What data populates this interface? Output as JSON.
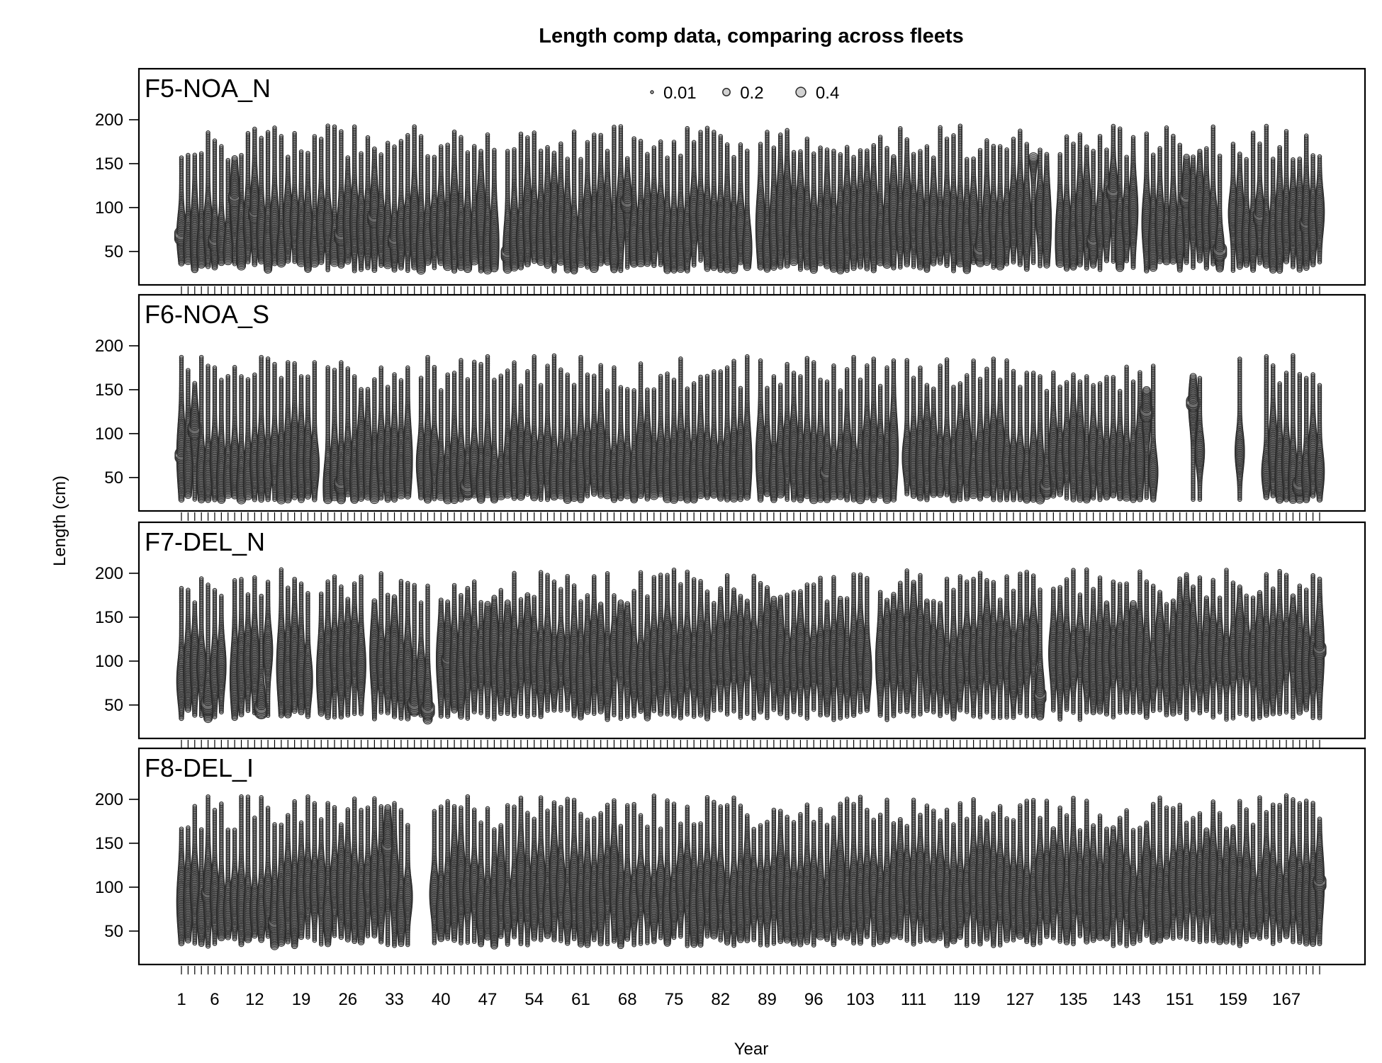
{
  "chart_data": {
    "type": "scatter",
    "subtype": "bubble",
    "title": "Length comp data,  comparing across fleets",
    "xlabel": "Year",
    "ylabel": "Length (cm)",
    "ylim": [
      20,
      250
    ],
    "xlim": [
      1,
      172
    ],
    "yticks": [
      50,
      100,
      150,
      200
    ],
    "xtick_labels": [
      "1",
      "6",
      "12",
      "19",
      "26",
      "33",
      "40",
      "47",
      "54",
      "61",
      "68",
      "75",
      "82",
      "89",
      "96",
      "103",
      "111",
      "119",
      "127",
      "135",
      "143",
      "151",
      "159",
      "167"
    ],
    "legend": {
      "placement": "top-center",
      "entries": [
        {
          "label": "0.01",
          "value": 0.01
        },
        {
          "label": "0.2",
          "value": 0.2
        },
        {
          "label": "0.4",
          "value": 0.4
        }
      ]
    },
    "grid": false,
    "color": "#333333",
    "panels": [
      {
        "label": "F5-NOA_N",
        "missing_ranges": [
          [
            49,
            49
          ],
          [
            87,
            87
          ],
          [
            132,
            132
          ],
          [
            145,
            145
          ],
          [
            158,
            158
          ]
        ],
        "mode_start": 65,
        "mode_end": 80,
        "len_min": 40,
        "len_max": 155,
        "peaks": [
          {
            "x": 1,
            "y": 68,
            "size": 0.4
          },
          {
            "x": 6,
            "y": 62,
            "size": 0.35
          },
          {
            "x": 9,
            "y": 110,
            "size": 0.3
          },
          {
            "x": 12,
            "y": 92,
            "size": 0.3
          },
          {
            "x": 25,
            "y": 68,
            "size": 0.4
          },
          {
            "x": 30,
            "y": 88,
            "size": 0.4
          },
          {
            "x": 33,
            "y": 62,
            "size": 0.35
          },
          {
            "x": 50,
            "y": 48,
            "size": 0.35
          },
          {
            "x": 68,
            "y": 105,
            "size": 0.4
          },
          {
            "x": 121,
            "y": 50,
            "size": 0.4
          },
          {
            "x": 129,
            "y": 165,
            "size": 0.3
          },
          {
            "x": 138,
            "y": 62,
            "size": 0.35
          },
          {
            "x": 141,
            "y": 118,
            "size": 0.4
          },
          {
            "x": 152,
            "y": 110,
            "size": 0.4
          },
          {
            "x": 157,
            "y": 50,
            "size": 0.4
          },
          {
            "x": 163,
            "y": 90,
            "size": 0.35
          },
          {
            "x": 170,
            "y": 80,
            "size": 0.35
          }
        ]
      },
      {
        "label": "F6-NOA_S",
        "missing_ranges": [
          [
            22,
            22
          ],
          [
            36,
            36
          ],
          [
            87,
            87
          ],
          [
            109,
            109
          ],
          [
            148,
            152
          ],
          [
            155,
            159
          ],
          [
            161,
            163
          ]
        ],
        "mode_start": 55,
        "mode_end": 65,
        "len_min": 32,
        "len_max": 150,
        "peaks": [
          {
            "x": 1,
            "y": 75,
            "size": 0.35
          },
          {
            "x": 3,
            "y": 105,
            "size": 0.4
          },
          {
            "x": 25,
            "y": 42,
            "size": 0.4
          },
          {
            "x": 44,
            "y": 38,
            "size": 0.45
          },
          {
            "x": 98,
            "y": 55,
            "size": 0.4
          },
          {
            "x": 131,
            "y": 40,
            "size": 0.4
          },
          {
            "x": 146,
            "y": 125,
            "size": 0.4
          },
          {
            "x": 153,
            "y": 135,
            "size": 0.4
          },
          {
            "x": 158,
            "y": 155,
            "size": 0.3
          },
          {
            "x": 163,
            "y": 45,
            "size": 0.45
          },
          {
            "x": 169,
            "y": 40,
            "size": 0.45
          }
        ]
      },
      {
        "label": "F7-DEL_N",
        "missing_ranges": [
          [
            8,
            8
          ],
          [
            15,
            15
          ],
          [
            21,
            21
          ],
          [
            29,
            29
          ],
          [
            39,
            39
          ],
          [
            105,
            105
          ],
          [
            131,
            131
          ]
        ],
        "mode_start": 95,
        "mode_end": 110,
        "len_min": 45,
        "len_max": 165,
        "peaks": [
          {
            "x": 5,
            "y": 50,
            "size": 0.45
          },
          {
            "x": 13,
            "y": 45,
            "size": 0.4
          },
          {
            "x": 36,
            "y": 50,
            "size": 0.4
          },
          {
            "x": 38,
            "y": 45,
            "size": 0.4
          },
          {
            "x": 41,
            "y": 100,
            "size": 0.3
          },
          {
            "x": 130,
            "y": 60,
            "size": 0.3
          },
          {
            "x": 172,
            "y": 112,
            "size": 0.35
          }
        ]
      },
      {
        "label": "F8-DEL_I",
        "missing_ranges": [
          [
            36,
            38
          ]
        ],
        "mode_start": 85,
        "mode_end": 95,
        "len_min": 45,
        "len_max": 165,
        "peaks": [
          {
            "x": 5,
            "y": 92,
            "size": 0.35
          },
          {
            "x": 15,
            "y": 58,
            "size": 0.35
          },
          {
            "x": 32,
            "y": 145,
            "size": 0.35
          },
          {
            "x": 172,
            "y": 105,
            "size": 0.35
          }
        ]
      }
    ]
  }
}
